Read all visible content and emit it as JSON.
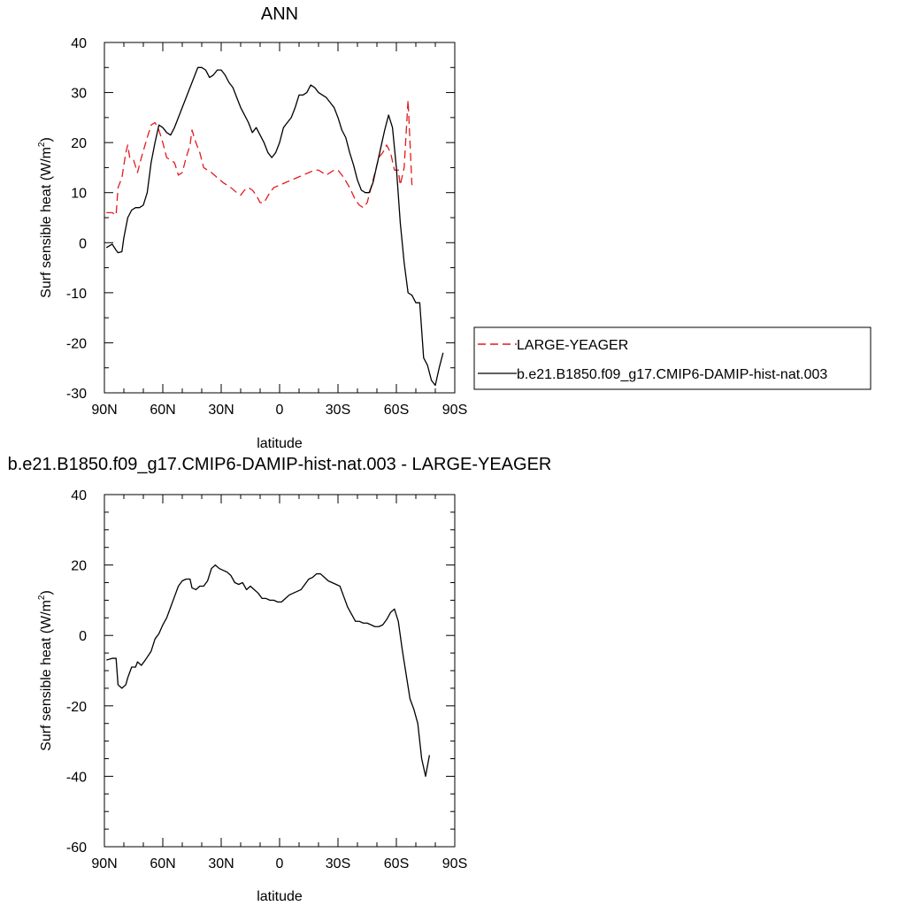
{
  "chart_data": [
    {
      "type": "line",
      "title": "ANN",
      "xlabel": "latitude",
      "ylabel": "Surf sensible heat (W/m",
      "ylabel_sup": "2",
      "ylabel_end": ")",
      "xlim": [
        90,
        -90
      ],
      "ylim": [
        -30,
        40
      ],
      "xticks": [
        90,
        60,
        30,
        0,
        -30,
        -60,
        -90
      ],
      "xtick_labels": [
        "90N",
        "60N",
        "30N",
        "0",
        "30S",
        "60S",
        "90S"
      ],
      "yticks": [
        -30,
        -20,
        -10,
        0,
        10,
        20,
        30,
        40
      ],
      "ytick_labels": [
        "-30",
        "-20",
        "-10",
        "0",
        "10",
        "20",
        "30",
        "40"
      ],
      "legend": "right",
      "series": [
        {
          "name": "LARGE-YEAGER",
          "color": "#e41a1c",
          "dash": "dashed",
          "points": [
            [
              89,
              6
            ],
            [
              86,
              6
            ],
            [
              84,
              5.5
            ],
            [
              83,
              11
            ],
            [
              81,
              13
            ],
            [
              79,
              18
            ],
            [
              78,
              19.5
            ],
            [
              77,
              17
            ],
            [
              75,
              16.5
            ],
            [
              73,
              14
            ],
            [
              71,
              17
            ],
            [
              68,
              21
            ],
            [
              66,
              23.5
            ],
            [
              64,
              24
            ],
            [
              62,
              22.5
            ],
            [
              60,
              20
            ],
            [
              58,
              17
            ],
            [
              56,
              16.5
            ],
            [
              54,
              16
            ],
            [
              52,
              13.5
            ],
            [
              50,
              14
            ],
            [
              48,
              17
            ],
            [
              46,
              19.5
            ],
            [
              45,
              22.5
            ],
            [
              43,
              20
            ],
            [
              41,
              18
            ],
            [
              39,
              15
            ],
            [
              35,
              14
            ],
            [
              32,
              13
            ],
            [
              29,
              12
            ],
            [
              25,
              11
            ],
            [
              22,
              10
            ],
            [
              20,
              9.5
            ],
            [
              18,
              10.5
            ],
            [
              16,
              11
            ],
            [
              14,
              10.5
            ],
            [
              12,
              9.5
            ],
            [
              10,
              8
            ],
            [
              8,
              8
            ],
            [
              5,
              10
            ],
            [
              3,
              11
            ],
            [
              0,
              11.5
            ],
            [
              -3,
              12
            ],
            [
              -6,
              12.5
            ],
            [
              -9,
              13
            ],
            [
              -12,
              13.5
            ],
            [
              -15,
              14
            ],
            [
              -18,
              14.5
            ],
            [
              -20,
              14.5
            ],
            [
              -22,
              14
            ],
            [
              -24,
              13.5
            ],
            [
              -26,
              14
            ],
            [
              -28,
              14.5
            ],
            [
              -30,
              14.5
            ],
            [
              -33,
              13
            ],
            [
              -36,
              11
            ],
            [
              -39,
              8.5
            ],
            [
              -41,
              7.5
            ],
            [
              -43,
              7
            ],
            [
              -45,
              8
            ],
            [
              -47,
              11
            ],
            [
              -49,
              14
            ],
            [
              -51,
              17
            ],
            [
              -53,
              18
            ],
            [
              -55,
              19.5
            ],
            [
              -57,
              18
            ],
            [
              -59,
              14.5
            ],
            [
              -61,
              14.5
            ],
            [
              -62,
              11.5
            ],
            [
              -64,
              15
            ],
            [
              -66,
              28.5
            ],
            [
              -68,
              11.5
            ]
          ]
        },
        {
          "name": "b.e21.B1850.f09_g17.CMIP6-DAMIP-hist-nat.003",
          "color": "#000000",
          "dash": "solid",
          "points": [
            [
              89,
              -1
            ],
            [
              86,
              -0.3
            ],
            [
              84,
              -1.5
            ],
            [
              83,
              -2
            ],
            [
              81,
              -1.8
            ],
            [
              80,
              1
            ],
            [
              78,
              5
            ],
            [
              76,
              6.5
            ],
            [
              74,
              7
            ],
            [
              72,
              7
            ],
            [
              70,
              7.5
            ],
            [
              68,
              10
            ],
            [
              66,
              16
            ],
            [
              64,
              20
            ],
            [
              62,
              23.5
            ],
            [
              60,
              23
            ],
            [
              58,
              22
            ],
            [
              56,
              21.5
            ],
            [
              54,
              23
            ],
            [
              52,
              25
            ],
            [
              50,
              27
            ],
            [
              48,
              29
            ],
            [
              46,
              31
            ],
            [
              44,
              33
            ],
            [
              42,
              35
            ],
            [
              40,
              35
            ],
            [
              38,
              34.5
            ],
            [
              36,
              33
            ],
            [
              34,
              33.5
            ],
            [
              32,
              34.5
            ],
            [
              30,
              34.5
            ],
            [
              28,
              33.5
            ],
            [
              26,
              32
            ],
            [
              24,
              31
            ],
            [
              22,
              29
            ],
            [
              20,
              27
            ],
            [
              18,
              25.5
            ],
            [
              16,
              24
            ],
            [
              14,
              22
            ],
            [
              12,
              23
            ],
            [
              10,
              21.5
            ],
            [
              8,
              20
            ],
            [
              6,
              18
            ],
            [
              4,
              17
            ],
            [
              2,
              18
            ],
            [
              0,
              20
            ],
            [
              -2,
              23
            ],
            [
              -4,
              24
            ],
            [
              -6,
              25
            ],
            [
              -8,
              27
            ],
            [
              -10,
              29.5
            ],
            [
              -12,
              29.5
            ],
            [
              -14,
              30
            ],
            [
              -16,
              31.5
            ],
            [
              -18,
              31
            ],
            [
              -20,
              30
            ],
            [
              -22,
              29.5
            ],
            [
              -24,
              29
            ],
            [
              -26,
              28
            ],
            [
              -28,
              27
            ],
            [
              -30,
              25
            ],
            [
              -32,
              22.5
            ],
            [
              -34,
              21
            ],
            [
              -36,
              18
            ],
            [
              -38,
              15.5
            ],
            [
              -40,
              12.5
            ],
            [
              -42,
              10.5
            ],
            [
              -44,
              10
            ],
            [
              -46,
              10
            ],
            [
              -48,
              12
            ],
            [
              -50,
              15.5
            ],
            [
              -52,
              19
            ],
            [
              -54,
              22.5
            ],
            [
              -56,
              25.5
            ],
            [
              -58,
              23
            ],
            [
              -60,
              15
            ],
            [
              -62,
              4
            ],
            [
              -64,
              -4
            ],
            [
              -66,
              -10
            ],
            [
              -68,
              -10.5
            ],
            [
              -70,
              -12
            ],
            [
              -72,
              -12
            ],
            [
              -74,
              -23
            ],
            [
              -76,
              -24.5
            ],
            [
              -78,
              -27.5
            ],
            [
              -80,
              -28.5
            ],
            [
              -82,
              -25
            ],
            [
              -84,
              -22
            ]
          ]
        }
      ]
    },
    {
      "type": "line",
      "title": "b.e21.B1850.f09_g17.CMIP6-DAMIP-hist-nat.003 - LARGE-YEAGER",
      "xlabel": "latitude",
      "ylabel": "Surf sensible heat (W/m",
      "ylabel_sup": "2",
      "ylabel_end": ")",
      "xlim": [
        90,
        -90
      ],
      "ylim": [
        -60,
        40
      ],
      "xticks": [
        90,
        60,
        30,
        0,
        -30,
        -60,
        -90
      ],
      "xtick_labels": [
        "90N",
        "60N",
        "30N",
        "0",
        "30S",
        "60S",
        "90S"
      ],
      "yticks": [
        -60,
        -40,
        -20,
        0,
        20,
        40
      ],
      "ytick_labels": [
        "-60",
        "-40",
        "-20",
        "0",
        "20",
        "40"
      ],
      "series": [
        {
          "color": "#000000",
          "dash": "solid",
          "points": [
            [
              89,
              -7
            ],
            [
              86,
              -6.5
            ],
            [
              84,
              -6.5
            ],
            [
              83,
              -14
            ],
            [
              81,
              -15
            ],
            [
              79,
              -14
            ],
            [
              78,
              -12
            ],
            [
              76,
              -9
            ],
            [
              74,
              -9
            ],
            [
              73,
              -7.5
            ],
            [
              71,
              -8.5
            ],
            [
              69,
              -7
            ],
            [
              66,
              -4.5
            ],
            [
              64,
              -1
            ],
            [
              62,
              0.5
            ],
            [
              60,
              3
            ],
            [
              58,
              5
            ],
            [
              56,
              8
            ],
            [
              54,
              11
            ],
            [
              52,
              14
            ],
            [
              50,
              15.5
            ],
            [
              48,
              16
            ],
            [
              46,
              16
            ],
            [
              45,
              13.5
            ],
            [
              43,
              13
            ],
            [
              41,
              14
            ],
            [
              39,
              14
            ],
            [
              37,
              15.5
            ],
            [
              35,
              19
            ],
            [
              33,
              20
            ],
            [
              31,
              19
            ],
            [
              29,
              18.5
            ],
            [
              27,
              18
            ],
            [
              25,
              17
            ],
            [
              23,
              15
            ],
            [
              21,
              14.5
            ],
            [
              19,
              15
            ],
            [
              17,
              13
            ],
            [
              15,
              14
            ],
            [
              13,
              13
            ],
            [
              11,
              12
            ],
            [
              9,
              10.5
            ],
            [
              7,
              10.5
            ],
            [
              5,
              10
            ],
            [
              3,
              10
            ],
            [
              1,
              9.5
            ],
            [
              -1,
              9.5
            ],
            [
              -3,
              10.5
            ],
            [
              -5,
              11.5
            ],
            [
              -7,
              12
            ],
            [
              -9,
              12.5
            ],
            [
              -11,
              13
            ],
            [
              -13,
              14.5
            ],
            [
              -15,
              16
            ],
            [
              -17,
              16.5
            ],
            [
              -19,
              17.5
            ],
            [
              -21,
              17.5
            ],
            [
              -23,
              16.5
            ],
            [
              -25,
              15.5
            ],
            [
              -27,
              15
            ],
            [
              -29,
              14.5
            ],
            [
              -31,
              14
            ],
            [
              -33,
              11
            ],
            [
              -35,
              8
            ],
            [
              -37,
              6
            ],
            [
              -39,
              4
            ],
            [
              -41,
              4
            ],
            [
              -43,
              3.5
            ],
            [
              -45,
              3.5
            ],
            [
              -47,
              3
            ],
            [
              -49,
              2.5
            ],
            [
              -51,
              2.5
            ],
            [
              -53,
              3
            ],
            [
              -55,
              4.5
            ],
            [
              -57,
              6.5
            ],
            [
              -59,
              7.5
            ],
            [
              -61,
              4
            ],
            [
              -63,
              -4
            ],
            [
              -65,
              -11
            ],
            [
              -67,
              -18
            ],
            [
              -69,
              -21
            ],
            [
              -71,
              -25
            ],
            [
              -73,
              -35
            ],
            [
              -75,
              -40
            ],
            [
              -77,
              -34
            ]
          ]
        }
      ]
    }
  ]
}
